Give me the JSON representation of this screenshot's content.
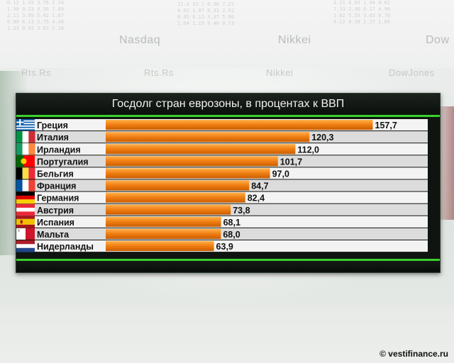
{
  "background": {
    "tickers": [
      "Nasdaq",
      "Nikkei",
      "Dow",
      "Rts.Rs",
      "Rts.Rs",
      "Nikkei",
      "DowJones"
    ]
  },
  "chart_data": {
    "type": "bar",
    "orientation": "horizontal",
    "title": "Госдолг стран еврозоны, в процентах к ВВП",
    "categories": [
      "Греция",
      "Италия",
      "Ирландия",
      "Португалия",
      "Бельгия",
      "Франция",
      "Германия",
      "Австрия",
      "Испания",
      "Мальта",
      "Нидерланды"
    ],
    "values": [
      157.7,
      120.3,
      112.0,
      101.7,
      97.0,
      84.7,
      82.4,
      73.8,
      68.1,
      68.0,
      63.9
    ],
    "value_labels": [
      "157,7",
      "120,3",
      "112,0",
      "101,7",
      "97,0",
      "84,7",
      "82,4",
      "73,8",
      "68,1",
      "68,0",
      "63,9"
    ],
    "flags": [
      "greece",
      "italy",
      "ireland",
      "portugal",
      "belgium",
      "france",
      "germany",
      "austria",
      "spain",
      "malta",
      "netherlands"
    ],
    "xlim": [
      0,
      160
    ],
    "grid": false,
    "legend": "none",
    "colors": {
      "bar": "#f07d12",
      "bar_highlight": "#ffb04a",
      "row_light": "#f3f3f3",
      "row_dark": "#dcdcdc",
      "accent_line": "#39d02c",
      "panel": "#0f1410"
    }
  },
  "credit": "© vestifinance.ru"
}
